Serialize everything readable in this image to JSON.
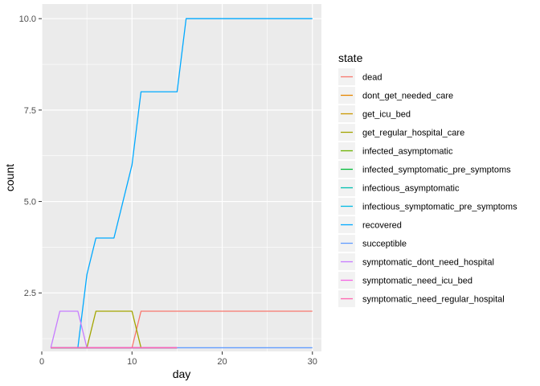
{
  "chart_data": {
    "type": "line",
    "xlabel": "day",
    "ylabel": "count",
    "xlim": [
      0,
      31
    ],
    "ylim": [
      0.9,
      10.4
    ],
    "x_ticks": [
      0,
      10,
      20,
      30
    ],
    "x_tick_labels": [
      "0",
      "10",
      "20",
      "30"
    ],
    "y_ticks": [
      2.5,
      5.0,
      7.5,
      10.0
    ],
    "y_tick_labels": [
      "2.5",
      "5.0",
      "7.5",
      "10.0"
    ],
    "grid": true,
    "legend_placement": "right",
    "legend_title": "state",
    "colors": {
      "panel_background": "#ebebeb",
      "grid_major": "#ffffff",
      "legend_key_background": "#f2f2f2"
    },
    "series": [
      {
        "name": "dead",
        "color": "#F8766D",
        "points": [
          [
            1,
            1
          ],
          [
            10,
            1
          ],
          [
            11,
            2
          ],
          [
            30,
            2
          ]
        ]
      },
      {
        "name": "dont_get_needed_care",
        "color": "#E58700",
        "points": [
          [
            1,
            1
          ],
          [
            15,
            1
          ]
        ]
      },
      {
        "name": "get_icu_bed",
        "color": "#C99800",
        "points": [
          [
            1,
            1
          ],
          [
            15,
            1
          ]
        ]
      },
      {
        "name": "get_regular_hospital_care",
        "color": "#A3A500",
        "points": [
          [
            1,
            1
          ],
          [
            5,
            1
          ],
          [
            6,
            2
          ],
          [
            10,
            2
          ],
          [
            11,
            1
          ],
          [
            15,
            1
          ]
        ]
      },
      {
        "name": "infected_asymptomatic",
        "color": "#6BB100",
        "points": [
          [
            1,
            1
          ],
          [
            15,
            1
          ]
        ]
      },
      {
        "name": "infected_symptomatic_pre_symptoms",
        "color": "#00BA38",
        "points": [
          [
            1,
            1
          ],
          [
            15,
            1
          ]
        ]
      },
      {
        "name": "infectious_asymptomatic",
        "color": "#00C0AF",
        "points": [
          [
            1,
            1
          ],
          [
            15,
            1
          ]
        ]
      },
      {
        "name": "infectious_symptomatic_pre_symptoms",
        "color": "#00B9E3",
        "points": [
          [
            1,
            1
          ],
          [
            15,
            1
          ]
        ]
      },
      {
        "name": "recovered",
        "color": "#00A9FF",
        "points": [
          [
            4,
            1
          ],
          [
            5,
            3
          ],
          [
            6,
            4
          ],
          [
            8,
            4
          ],
          [
            10,
            6
          ],
          [
            11,
            8
          ],
          [
            15,
            8
          ],
          [
            16,
            10
          ],
          [
            30,
            10
          ]
        ]
      },
      {
        "name": "succeptible",
        "color": "#619CFF",
        "points": [
          [
            1,
            1
          ],
          [
            30,
            1
          ]
        ]
      },
      {
        "name": "symptomatic_dont_need_hospital",
        "color": "#C77CFF",
        "points": [
          [
            1,
            1
          ],
          [
            2,
            2
          ],
          [
            4,
            2
          ],
          [
            5,
            1
          ],
          [
            15,
            1
          ]
        ]
      },
      {
        "name": "symptomatic_need_icu_bed",
        "color": "#F564E3",
        "points": [
          [
            1,
            1
          ],
          [
            15,
            1
          ]
        ]
      },
      {
        "name": "symptomatic_need_regular_hospital",
        "color": "#FF64B0",
        "points": [
          [
            1,
            1
          ],
          [
            15,
            1
          ]
        ]
      }
    ]
  }
}
